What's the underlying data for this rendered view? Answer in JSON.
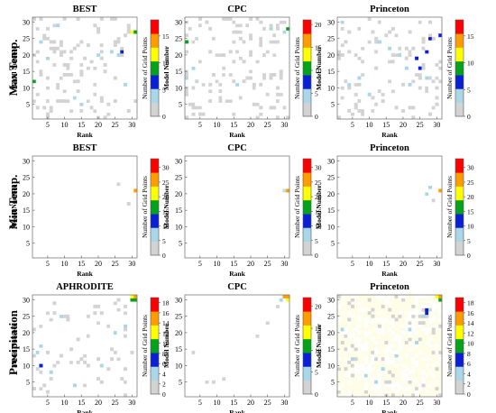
{
  "figure": {
    "row_labels": [
      "Max Temp.",
      "Min Temp.",
      "Precipitation"
    ],
    "axis_labels": {
      "x": "Rank",
      "y": "Model Number",
      "colorbar": "Number of Grid Points"
    }
  },
  "chart_data": [
    {
      "type": "heatmap",
      "title": "BEST",
      "xlabel": "Rank",
      "ylabel": "Model Number",
      "xticks": [
        5,
        10,
        15,
        20,
        25,
        30
      ],
      "yticks": [
        5,
        10,
        15,
        20,
        25,
        30
      ],
      "xlim": [
        1,
        31
      ],
      "ylim": [
        1,
        31
      ],
      "colorbar": {
        "label": "Number of Grid Points",
        "ticks": [
          0,
          5,
          10,
          15
        ],
        "max": 18,
        "colors": [
          "#ffffff",
          "#d3d3d3",
          "#a9d7e8",
          "#0a1fd6",
          "#05a21c",
          "#ffff00",
          "#ff9c00",
          "#ff0000"
        ]
      },
      "highlight_cells": [
        {
          "rank": 1,
          "model": 12,
          "value": 12
        },
        {
          "rank": 31,
          "model": 27,
          "value": 12
        },
        {
          "rank": 30,
          "model": 27,
          "value": 14
        },
        {
          "rank": 27,
          "model": 21,
          "value": 8
        },
        {
          "rank": 26,
          "model": 20,
          "value": 7
        },
        {
          "rank": 24,
          "model": 21,
          "value": 6
        },
        {
          "rank": 20,
          "model": 20,
          "value": 7
        },
        {
          "rank": 8,
          "model": 29,
          "value": 7
        },
        {
          "rank": 13,
          "model": 7,
          "value": 7
        },
        {
          "rank": 15,
          "model": 5,
          "value": 7
        },
        {
          "rank": 5,
          "model": 19,
          "value": 6
        },
        {
          "rank": 28,
          "model": 11,
          "value": 6
        },
        {
          "rank": 3,
          "model": 24,
          "value": 6
        }
      ]
    },
    {
      "type": "heatmap",
      "title": "CPC",
      "xlabel": "Rank",
      "ylabel": "Model Number",
      "xticks": [
        5,
        10,
        15,
        20,
        25,
        30
      ],
      "yticks": [
        5,
        10,
        15,
        20,
        25,
        30
      ],
      "xlim": [
        1,
        31
      ],
      "ylim": [
        1,
        31
      ],
      "colorbar": {
        "label": "Number of Grid Points",
        "ticks": [
          0,
          5,
          10,
          15,
          20
        ],
        "max": 21,
        "colors": [
          "#ffffff",
          "#d3d3d3",
          "#a9d7e8",
          "#0a1fd6",
          "#05a21c",
          "#ffff00",
          "#ff9c00",
          "#ff0000"
        ]
      },
      "highlight_cells": [
        {
          "rank": 31,
          "model": 28,
          "value": 13
        },
        {
          "rank": 30,
          "model": 27,
          "value": 7
        },
        {
          "rank": 1,
          "model": 24,
          "value": 12
        },
        {
          "rank": 1,
          "model": 13,
          "value": 8
        },
        {
          "rank": 3,
          "model": 16,
          "value": 6
        },
        {
          "rank": 16,
          "model": 11,
          "value": 6
        },
        {
          "rank": 26,
          "model": 28,
          "value": 6
        }
      ]
    },
    {
      "type": "heatmap",
      "title": "Princeton",
      "xlabel": "Rank",
      "ylabel": "Model Number",
      "xticks": [
        5,
        10,
        15,
        20,
        25,
        30
      ],
      "yticks": [
        5,
        10,
        15,
        20,
        25,
        30
      ],
      "xlim": [
        1,
        31
      ],
      "ylim": [
        1,
        31
      ],
      "colorbar": {
        "label": "Number of Grid Points",
        "ticks": [
          0,
          5,
          10,
          15
        ],
        "max": 18,
        "colors": [
          "#ffffff",
          "#d3d3d3",
          "#a9d7e8",
          "#0a1fd6",
          "#05a21c",
          "#ffff00",
          "#ff9c00",
          "#ff0000"
        ]
      },
      "highlight_cells": [
        {
          "rank": 31,
          "model": 26,
          "value": 10
        },
        {
          "rank": 28,
          "model": 25,
          "value": 8
        },
        {
          "rank": 27,
          "model": 21,
          "value": 9
        },
        {
          "rank": 24,
          "model": 19,
          "value": 9
        },
        {
          "rank": 25,
          "model": 16,
          "value": 8
        },
        {
          "rank": 21,
          "model": 16,
          "value": 7
        },
        {
          "rank": 19,
          "model": 20,
          "value": 7
        },
        {
          "rank": 16,
          "model": 22,
          "value": 7
        },
        {
          "rank": 13,
          "model": 24,
          "value": 6
        },
        {
          "rank": 4,
          "model": 11,
          "value": 7
        },
        {
          "rank": 7,
          "model": 13,
          "value": 6
        },
        {
          "rank": 10,
          "model": 8,
          "value": 6
        },
        {
          "rank": 2,
          "model": 30,
          "value": 6
        },
        {
          "rank": 22,
          "model": 11,
          "value": 6
        },
        {
          "rank": 27,
          "model": 13,
          "value": 6
        }
      ]
    },
    {
      "type": "heatmap",
      "title": "BEST",
      "xlabel": "Rank",
      "ylabel": "Model Number",
      "xticks": [
        5,
        10,
        15,
        20,
        25,
        30
      ],
      "yticks": [
        5,
        10,
        15,
        20,
        25,
        30
      ],
      "xlim": [
        1,
        31
      ],
      "ylim": [
        1,
        31
      ],
      "colorbar": {
        "label": "Number of Grid Points",
        "ticks": [
          0,
          5,
          10,
          15,
          20,
          25,
          30
        ],
        "max": 33,
        "colors": [
          "#ffffff",
          "#d3d3d3",
          "#a9d7e8",
          "#0a1fd6",
          "#05a21c",
          "#ffff00",
          "#ff9c00",
          "#ff0000"
        ]
      },
      "highlight_cells": [
        {
          "rank": 31,
          "model": 21,
          "value": 31
        },
        {
          "rank": 26,
          "model": 23,
          "value": 8
        },
        {
          "rank": 29,
          "model": 17,
          "value": 6
        }
      ]
    },
    {
      "type": "heatmap",
      "title": "CPC",
      "xlabel": "Rank",
      "ylabel": "Model Number",
      "xticks": [
        5,
        10,
        15,
        20,
        25,
        30
      ],
      "yticks": [
        5,
        10,
        15,
        20,
        25,
        30
      ],
      "xlim": [
        1,
        31
      ],
      "ylim": [
        1,
        31
      ],
      "colorbar": {
        "label": "Number of Grid Points",
        "ticks": [
          0,
          5,
          10,
          15,
          20,
          25,
          30
        ],
        "max": 33,
        "colors": [
          "#ffffff",
          "#d3d3d3",
          "#a9d7e8",
          "#0a1fd6",
          "#05a21c",
          "#ffff00",
          "#ff9c00",
          "#ff0000"
        ]
      },
      "highlight_cells": [
        {
          "rank": 31,
          "model": 21,
          "value": 31
        },
        {
          "rank": 30,
          "model": 21,
          "value": 8
        }
      ]
    },
    {
      "type": "heatmap",
      "title": "Princeton",
      "xlabel": "Rank",
      "ylabel": "Model Number",
      "xticks": [
        5,
        10,
        15,
        20,
        25,
        30
      ],
      "yticks": [
        5,
        10,
        15,
        20,
        25,
        30
      ],
      "xlim": [
        1,
        31
      ],
      "ylim": [
        1,
        31
      ],
      "colorbar": {
        "label": "Number of Grid Points",
        "ticks": [
          0,
          5,
          10,
          15,
          20,
          25,
          30
        ],
        "max": 33,
        "colors": [
          "#ffffff",
          "#d3d3d3",
          "#a9d7e8",
          "#0a1fd6",
          "#05a21c",
          "#ffff00",
          "#ff9c00",
          "#ff0000"
        ]
      },
      "highlight_cells": [
        {
          "rank": 31,
          "model": 21,
          "value": 31
        },
        {
          "rank": 28,
          "model": 22,
          "value": 12
        },
        {
          "rank": 27,
          "model": 20,
          "value": 10
        },
        {
          "rank": 29,
          "model": 18,
          "value": 8
        }
      ]
    },
    {
      "type": "heatmap",
      "title": "APHRODITE",
      "xlabel": "Rank",
      "ylabel": "Model Number",
      "xticks": [
        5,
        10,
        15,
        20,
        25,
        30
      ],
      "yticks": [
        5,
        10,
        15,
        20,
        25,
        30
      ],
      "xlim": [
        1,
        31
      ],
      "ylim": [
        1,
        31
      ],
      "colorbar": {
        "label": "Number of Grid Points",
        "ticks": [
          0,
          2,
          4,
          6,
          8,
          10,
          12,
          14,
          16,
          18
        ],
        "max": 19,
        "colors": [
          "#ffffff",
          "#d3d3d3",
          "#a9d7e8",
          "#0a1fd6",
          "#05a21c",
          "#ffff00",
          "#ff9c00",
          "#ff0000"
        ]
      },
      "highlight_cells": [
        {
          "rank": 31,
          "model": 31,
          "value": 17
        },
        {
          "rank": 30,
          "model": 31,
          "value": 14
        },
        {
          "rank": 31,
          "model": 30,
          "value": 13
        },
        {
          "rank": 30,
          "model": 30,
          "value": 12
        },
        {
          "rank": 3,
          "model": 16,
          "value": 8
        },
        {
          "rank": 3,
          "model": 10,
          "value": 9
        },
        {
          "rank": 9,
          "model": 25,
          "value": 6
        },
        {
          "rank": 28,
          "model": 22,
          "value": 6
        },
        {
          "rank": 25,
          "model": 20,
          "value": 6
        },
        {
          "rank": 21,
          "model": 10,
          "value": 6
        },
        {
          "rank": 6,
          "model": 8,
          "value": 7
        },
        {
          "rank": 13,
          "model": 4,
          "value": 6
        },
        {
          "rank": 2,
          "model": 14,
          "value": 6
        }
      ]
    },
    {
      "type": "heatmap",
      "title": "CPC",
      "xlabel": "Rank",
      "ylabel": "Model Number",
      "xticks": [
        5,
        10,
        15,
        20,
        25,
        30
      ],
      "yticks": [
        5,
        10,
        15,
        20,
        25,
        30
      ],
      "xlim": [
        1,
        31
      ],
      "ylim": [
        1,
        31
      ],
      "colorbar": {
        "label": "Number of Grid Points",
        "ticks": [
          0,
          5,
          10,
          15,
          20
        ],
        "max": 22,
        "colors": [
          "#ffffff",
          "#d3d3d3",
          "#a9d7e8",
          "#0a1fd6",
          "#05a21c",
          "#ffff00",
          "#ff9c00",
          "#ff0000"
        ]
      },
      "highlight_cells": [
        {
          "rank": 31,
          "model": 31,
          "value": 21
        },
        {
          "rank": 30,
          "model": 31,
          "value": 19
        },
        {
          "rank": 31,
          "model": 30,
          "value": 17
        },
        {
          "rank": 29,
          "model": 30,
          "value": 8
        },
        {
          "rank": 28,
          "model": 28,
          "value": 6
        },
        {
          "rank": 25,
          "model": 23,
          "value": 6
        },
        {
          "rank": 22,
          "model": 19,
          "value": 6
        },
        {
          "rank": 9,
          "model": 5,
          "value": 6
        },
        {
          "rank": 7,
          "model": 5,
          "value": 6
        },
        {
          "rank": 3,
          "model": 14,
          "value": 6
        },
        {
          "rank": 12,
          "model": 6,
          "value": 6
        }
      ]
    },
    {
      "type": "heatmap",
      "title": "Princeton",
      "xlabel": "Rank",
      "ylabel": "Model Number",
      "xticks": [
        5,
        10,
        15,
        20,
        25,
        30
      ],
      "yticks": [
        5,
        10,
        15,
        20,
        25,
        30
      ],
      "xlim": [
        1,
        31
      ],
      "ylim": [
        1,
        31
      ],
      "background": "#fdfde8",
      "colorbar": {
        "label": "Number of Grid Points",
        "ticks": [
          0,
          2,
          4,
          6,
          8,
          10,
          12,
          14,
          16,
          18
        ],
        "max": 19,
        "colors": [
          "#ffffff",
          "#d3d3d3",
          "#a9d7e8",
          "#0a1fd6",
          "#05a21c",
          "#ffff00",
          "#ff9c00",
          "#ff0000"
        ]
      },
      "highlight_cells": [
        {
          "rank": 31,
          "model": 31,
          "value": 17
        },
        {
          "rank": 30,
          "model": 31,
          "value": 14
        },
        {
          "rank": 31,
          "model": 30,
          "value": 13
        },
        {
          "rank": 27,
          "model": 27,
          "value": 10
        },
        {
          "rank": 26,
          "model": 25,
          "value": 8
        },
        {
          "rank": 27,
          "model": 26,
          "value": 9
        },
        {
          "rank": 22,
          "model": 21,
          "value": 6
        },
        {
          "rank": 24,
          "model": 17,
          "value": 6
        },
        {
          "rank": 18,
          "model": 13,
          "value": 6
        },
        {
          "rank": 12,
          "model": 5,
          "value": 6
        },
        {
          "rank": 9,
          "model": 7,
          "value": 6
        },
        {
          "rank": 5,
          "model": 12,
          "value": 6
        },
        {
          "rank": 2,
          "model": 21,
          "value": 6
        },
        {
          "rank": 14,
          "model": 9,
          "value": 6
        }
      ]
    }
  ]
}
